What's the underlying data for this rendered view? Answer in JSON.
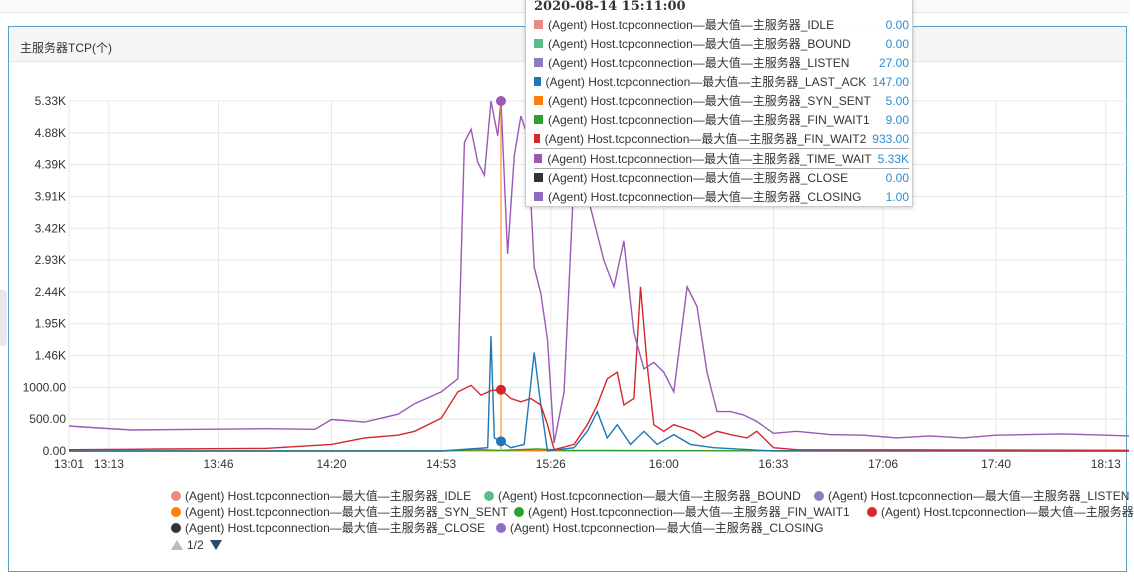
{
  "panel": {
    "title": "主服务器TCP(个)"
  },
  "chart_data": {
    "type": "line",
    "title": "主服务器TCP(个)",
    "ylim": [
      0,
      5330
    ],
    "y_ticks": [
      "0.00",
      "500.00",
      "1000.00",
      "1.46K",
      "1.95K",
      "2.44K",
      "2.93K",
      "3.42K",
      "3.91K",
      "4.39K",
      "4.88K",
      "5.33K"
    ],
    "x_ticks": [
      "13:01",
      "13:13",
      "13:46",
      "14:20",
      "14:53",
      "15:26",
      "16:00",
      "16:33",
      "17:06",
      "17:40",
      "18:13"
    ],
    "grid": true,
    "legend_position": "bottom",
    "series": [
      {
        "name": "(Agent) Host.tcpconnection—最大值—主服务器_TIME_WAIT",
        "color": "#9b59b6",
        "points": [
          [
            "13:01",
            380
          ],
          [
            "13:10",
            350
          ],
          [
            "13:20",
            320
          ],
          [
            "13:40",
            330
          ],
          [
            "14:00",
            340
          ],
          [
            "14:15",
            330
          ],
          [
            "14:20",
            480
          ],
          [
            "14:30",
            440
          ],
          [
            "14:40",
            560
          ],
          [
            "14:45",
            720
          ],
          [
            "14:53",
            900
          ],
          [
            "14:58",
            1100
          ],
          [
            "15:00",
            4700
          ],
          [
            "15:02",
            4900
          ],
          [
            "15:04",
            4400
          ],
          [
            "15:06",
            4200
          ],
          [
            "15:08",
            5330
          ],
          [
            "15:10",
            4800
          ],
          [
            "15:11",
            5330
          ],
          [
            "15:13",
            3000
          ],
          [
            "15:15",
            4500
          ],
          [
            "15:17",
            5100
          ],
          [
            "15:19",
            4800
          ],
          [
            "15:21",
            2800
          ],
          [
            "15:23",
            2400
          ],
          [
            "15:25",
            1700
          ],
          [
            "15:27",
            120
          ],
          [
            "15:30",
            900
          ],
          [
            "15:33",
            4200
          ],
          [
            "15:36",
            4100
          ],
          [
            "15:39",
            3500
          ],
          [
            "15:42",
            2900
          ],
          [
            "15:45",
            2500
          ],
          [
            "15:48",
            3200
          ],
          [
            "15:51",
            1800
          ],
          [
            "15:54",
            1250
          ],
          [
            "15:57",
            1350
          ],
          [
            "16:00",
            1200
          ],
          [
            "16:03",
            900
          ],
          [
            "16:07",
            2500
          ],
          [
            "16:10",
            2200
          ],
          [
            "16:13",
            1200
          ],
          [
            "16:16",
            600
          ],
          [
            "16:20",
            600
          ],
          [
            "16:24",
            550
          ],
          [
            "16:28",
            450
          ],
          [
            "16:33",
            270
          ],
          [
            "16:40",
            300
          ],
          [
            "16:50",
            250
          ],
          [
            "17:00",
            240
          ],
          [
            "17:10",
            200
          ],
          [
            "17:20",
            230
          ],
          [
            "17:30",
            200
          ],
          [
            "17:40",
            240
          ],
          [
            "17:50",
            250
          ],
          [
            "18:00",
            260
          ],
          [
            "18:13",
            240
          ],
          [
            "18:20",
            230
          ]
        ]
      },
      {
        "name": "(Agent) Host.tcpconnection—最大值—主服务器_FIN_WAIT2",
        "color": "#d62728",
        "points": [
          [
            "13:01",
            20
          ],
          [
            "13:30",
            30
          ],
          [
            "14:00",
            40
          ],
          [
            "14:20",
            100
          ],
          [
            "14:30",
            200
          ],
          [
            "14:40",
            240
          ],
          [
            "14:45",
            300
          ],
          [
            "14:53",
            500
          ],
          [
            "14:58",
            900
          ],
          [
            "15:02",
            1000
          ],
          [
            "15:05",
            850
          ],
          [
            "15:08",
            920
          ],
          [
            "15:11",
            933
          ],
          [
            "15:14",
            800
          ],
          [
            "15:17",
            750
          ],
          [
            "15:20",
            800
          ],
          [
            "15:23",
            700
          ],
          [
            "15:25",
            400
          ],
          [
            "15:27",
            20
          ],
          [
            "15:33",
            100
          ],
          [
            "15:37",
            400
          ],
          [
            "15:40",
            700
          ],
          [
            "15:43",
            1100
          ],
          [
            "15:46",
            1200
          ],
          [
            "15:48",
            700
          ],
          [
            "15:51",
            800
          ],
          [
            "15:53",
            2500
          ],
          [
            "15:55",
            1300
          ],
          [
            "15:57",
            400
          ],
          [
            "16:00",
            300
          ],
          [
            "16:03",
            400
          ],
          [
            "16:06",
            350
          ],
          [
            "16:09",
            300
          ],
          [
            "16:12",
            200
          ],
          [
            "16:16",
            300
          ],
          [
            "16:20",
            250
          ],
          [
            "16:25",
            200
          ],
          [
            "16:28",
            300
          ],
          [
            "16:33",
            50
          ],
          [
            "16:40",
            20
          ],
          [
            "18:20",
            10
          ]
        ]
      },
      {
        "name": "(Agent) Host.tcpconnection—最大值—主服务器_LAST_ACK",
        "color": "#1f77b4",
        "points": [
          [
            "13:01",
            0
          ],
          [
            "14:53",
            0
          ],
          [
            "15:07",
            50
          ],
          [
            "15:08",
            1750
          ],
          [
            "15:09",
            200
          ],
          [
            "15:11",
            147
          ],
          [
            "15:14",
            50
          ],
          [
            "15:18",
            100
          ],
          [
            "15:21",
            1500
          ],
          [
            "15:23",
            700
          ],
          [
            "15:25",
            0
          ],
          [
            "15:33",
            50
          ],
          [
            "15:37",
            300
          ],
          [
            "15:40",
            600
          ],
          [
            "15:43",
            200
          ],
          [
            "15:46",
            400
          ],
          [
            "15:50",
            100
          ],
          [
            "15:54",
            300
          ],
          [
            "15:58",
            100
          ],
          [
            "16:03",
            250
          ],
          [
            "16:08",
            100
          ],
          [
            "16:15",
            50
          ],
          [
            "16:33",
            0
          ],
          [
            "18:20",
            0
          ]
        ]
      },
      {
        "name": "(Agent) Host.tcpconnection—最大值—主服务器_FIN_WAIT1",
        "color": "#2ca02c",
        "points": [
          [
            "13:01",
            0
          ],
          [
            "14:53",
            0
          ],
          [
            "15:05",
            20
          ],
          [
            "15:11",
            9
          ],
          [
            "15:22",
            30
          ],
          [
            "15:30",
            10
          ],
          [
            "16:00",
            5
          ],
          [
            "18:20",
            0
          ]
        ]
      },
      {
        "name": "(Agent) Host.tcpconnection—最大值—主服务器_SYN_SENT",
        "color": "#ff7f0e",
        "points": [
          [
            "13:01",
            0
          ],
          [
            "15:11",
            5
          ],
          [
            "18:20",
            0
          ]
        ]
      }
    ],
    "hover": {
      "time": "15:11",
      "crosshair_color": "#ff7f0e",
      "markers": [
        {
          "series": "TIME_WAIT",
          "value": 5330,
          "color": "#9b59b6"
        },
        {
          "series": "FIN_WAIT2",
          "value": 933,
          "color": "#d62728"
        },
        {
          "series": "LAST_ACK",
          "value": 147,
          "color": "#1f77b4"
        }
      ]
    }
  },
  "legend": {
    "items": [
      {
        "label": "(Agent) Host.tcpconnection—最大值—主服务器_IDLE",
        "color": "#e88a85"
      },
      {
        "label": "(Agent) Host.tcpconnection—最大值—主服务器_BOUND",
        "color": "#5cbd8b"
      },
      {
        "label": "(Agent) Host.tcpconnection—最大值—主服务器_LISTEN",
        "color": "#8e7db8"
      },
      {
        "label": "(Agent) Host.tcpconnection—最大值—主服务器_SYN_SENT",
        "color": "#ff7f0e"
      },
      {
        "label": "(Agent) Host.tcpconnection—最大值—主服务器_FIN_WAIT1",
        "color": "#2ca02c"
      },
      {
        "label": "(Agent) Host.tcpconnection—最大值—主服务器",
        "color": "#d62728"
      },
      {
        "label": "(Agent) Host.tcpconnection—最大值—主服务器_CLOSE",
        "color": "#333333"
      },
      {
        "label": "(Agent) Host.tcpconnection—最大值—主服务器_CLOSING",
        "color": "#8e6cc4"
      }
    ],
    "pager": "1/2"
  },
  "tooltip": {
    "title": "2020-08-14 15:11:00",
    "rows": [
      {
        "name": "(Agent) Host.tcpconnection—最大值—主服务器_IDLE",
        "value": "0.00",
        "color": "#e88a85"
      },
      {
        "name": "(Agent) Host.tcpconnection—最大值—主服务器_BOUND",
        "value": "0.00",
        "color": "#5cbd8b"
      },
      {
        "name": "(Agent) Host.tcpconnection—最大值—主服务器_LISTEN",
        "value": "27.00",
        "color": "#8e7db8"
      },
      {
        "name": "(Agent) Host.tcpconnection—最大值—主服务器_LAST_ACK",
        "value": "147.00",
        "color": "#1f77b4"
      },
      {
        "name": "(Agent) Host.tcpconnection—最大值—主服务器_SYN_SENT",
        "value": "5.00",
        "color": "#ff7f0e"
      },
      {
        "name": "(Agent) Host.tcpconnection—最大值—主服务器_FIN_WAIT1",
        "value": "9.00",
        "color": "#2ca02c"
      },
      {
        "name": "(Agent) Host.tcpconnection—最大值—主服务器_FIN_WAIT2",
        "value": "933.00",
        "color": "#d62728"
      },
      {
        "name": "(Agent) Host.tcpconnection—最大值—主服务器_TIME_WAIT",
        "value": "5.33K",
        "color": "#9b59b6",
        "highlight": true
      },
      {
        "name": "(Agent) Host.tcpconnection—最大值—主服务器_CLOSE",
        "value": "0.00",
        "color": "#333333"
      },
      {
        "name": "(Agent) Host.tcpconnection—最大值—主服务器_CLOSING",
        "value": "1.00",
        "color": "#8e6cc4"
      }
    ]
  }
}
